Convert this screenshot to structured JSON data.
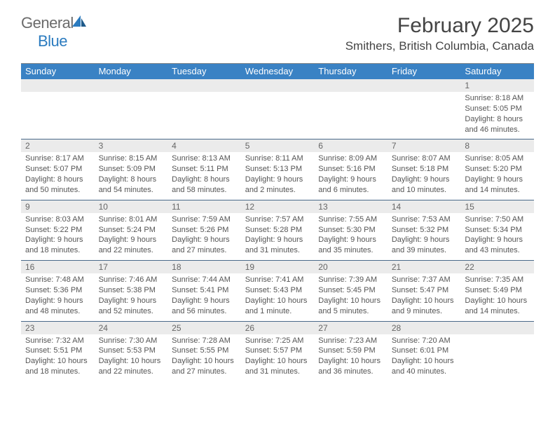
{
  "logo": {
    "general": "General",
    "blue": "Blue"
  },
  "title": "February 2025",
  "location": "Smithers, British Columbia, Canada",
  "colors": {
    "header_bg": "#3a82c4",
    "header_text": "#ffffff",
    "strip_bg": "#ebebeb",
    "border": "#4a6a8a",
    "logo_blue": "#2b7bbf",
    "logo_gray": "#6b6b6b",
    "text": "#444444"
  },
  "day_names": [
    "Sunday",
    "Monday",
    "Tuesday",
    "Wednesday",
    "Thursday",
    "Friday",
    "Saturday"
  ],
  "weeks": [
    [
      {
        "n": "",
        "l": []
      },
      {
        "n": "",
        "l": []
      },
      {
        "n": "",
        "l": []
      },
      {
        "n": "",
        "l": []
      },
      {
        "n": "",
        "l": []
      },
      {
        "n": "",
        "l": []
      },
      {
        "n": "1",
        "l": [
          "Sunrise: 8:18 AM",
          "Sunset: 5:05 PM",
          "Daylight: 8 hours",
          "and 46 minutes."
        ]
      }
    ],
    [
      {
        "n": "2",
        "l": [
          "Sunrise: 8:17 AM",
          "Sunset: 5:07 PM",
          "Daylight: 8 hours",
          "and 50 minutes."
        ]
      },
      {
        "n": "3",
        "l": [
          "Sunrise: 8:15 AM",
          "Sunset: 5:09 PM",
          "Daylight: 8 hours",
          "and 54 minutes."
        ]
      },
      {
        "n": "4",
        "l": [
          "Sunrise: 8:13 AM",
          "Sunset: 5:11 PM",
          "Daylight: 8 hours",
          "and 58 minutes."
        ]
      },
      {
        "n": "5",
        "l": [
          "Sunrise: 8:11 AM",
          "Sunset: 5:13 PM",
          "Daylight: 9 hours",
          "and 2 minutes."
        ]
      },
      {
        "n": "6",
        "l": [
          "Sunrise: 8:09 AM",
          "Sunset: 5:16 PM",
          "Daylight: 9 hours",
          "and 6 minutes."
        ]
      },
      {
        "n": "7",
        "l": [
          "Sunrise: 8:07 AM",
          "Sunset: 5:18 PM",
          "Daylight: 9 hours",
          "and 10 minutes."
        ]
      },
      {
        "n": "8",
        "l": [
          "Sunrise: 8:05 AM",
          "Sunset: 5:20 PM",
          "Daylight: 9 hours",
          "and 14 minutes."
        ]
      }
    ],
    [
      {
        "n": "9",
        "l": [
          "Sunrise: 8:03 AM",
          "Sunset: 5:22 PM",
          "Daylight: 9 hours",
          "and 18 minutes."
        ]
      },
      {
        "n": "10",
        "l": [
          "Sunrise: 8:01 AM",
          "Sunset: 5:24 PM",
          "Daylight: 9 hours",
          "and 22 minutes."
        ]
      },
      {
        "n": "11",
        "l": [
          "Sunrise: 7:59 AM",
          "Sunset: 5:26 PM",
          "Daylight: 9 hours",
          "and 27 minutes."
        ]
      },
      {
        "n": "12",
        "l": [
          "Sunrise: 7:57 AM",
          "Sunset: 5:28 PM",
          "Daylight: 9 hours",
          "and 31 minutes."
        ]
      },
      {
        "n": "13",
        "l": [
          "Sunrise: 7:55 AM",
          "Sunset: 5:30 PM",
          "Daylight: 9 hours",
          "and 35 minutes."
        ]
      },
      {
        "n": "14",
        "l": [
          "Sunrise: 7:53 AM",
          "Sunset: 5:32 PM",
          "Daylight: 9 hours",
          "and 39 minutes."
        ]
      },
      {
        "n": "15",
        "l": [
          "Sunrise: 7:50 AM",
          "Sunset: 5:34 PM",
          "Daylight: 9 hours",
          "and 43 minutes."
        ]
      }
    ],
    [
      {
        "n": "16",
        "l": [
          "Sunrise: 7:48 AM",
          "Sunset: 5:36 PM",
          "Daylight: 9 hours",
          "and 48 minutes."
        ]
      },
      {
        "n": "17",
        "l": [
          "Sunrise: 7:46 AM",
          "Sunset: 5:38 PM",
          "Daylight: 9 hours",
          "and 52 minutes."
        ]
      },
      {
        "n": "18",
        "l": [
          "Sunrise: 7:44 AM",
          "Sunset: 5:41 PM",
          "Daylight: 9 hours",
          "and 56 minutes."
        ]
      },
      {
        "n": "19",
        "l": [
          "Sunrise: 7:41 AM",
          "Sunset: 5:43 PM",
          "Daylight: 10 hours",
          "and 1 minute."
        ]
      },
      {
        "n": "20",
        "l": [
          "Sunrise: 7:39 AM",
          "Sunset: 5:45 PM",
          "Daylight: 10 hours",
          "and 5 minutes."
        ]
      },
      {
        "n": "21",
        "l": [
          "Sunrise: 7:37 AM",
          "Sunset: 5:47 PM",
          "Daylight: 10 hours",
          "and 9 minutes."
        ]
      },
      {
        "n": "22",
        "l": [
          "Sunrise: 7:35 AM",
          "Sunset: 5:49 PM",
          "Daylight: 10 hours",
          "and 14 minutes."
        ]
      }
    ],
    [
      {
        "n": "23",
        "l": [
          "Sunrise: 7:32 AM",
          "Sunset: 5:51 PM",
          "Daylight: 10 hours",
          "and 18 minutes."
        ]
      },
      {
        "n": "24",
        "l": [
          "Sunrise: 7:30 AM",
          "Sunset: 5:53 PM",
          "Daylight: 10 hours",
          "and 22 minutes."
        ]
      },
      {
        "n": "25",
        "l": [
          "Sunrise: 7:28 AM",
          "Sunset: 5:55 PM",
          "Daylight: 10 hours",
          "and 27 minutes."
        ]
      },
      {
        "n": "26",
        "l": [
          "Sunrise: 7:25 AM",
          "Sunset: 5:57 PM",
          "Daylight: 10 hours",
          "and 31 minutes."
        ]
      },
      {
        "n": "27",
        "l": [
          "Sunrise: 7:23 AM",
          "Sunset: 5:59 PM",
          "Daylight: 10 hours",
          "and 36 minutes."
        ]
      },
      {
        "n": "28",
        "l": [
          "Sunrise: 7:20 AM",
          "Sunset: 6:01 PM",
          "Daylight: 10 hours",
          "and 40 minutes."
        ]
      },
      {
        "n": "",
        "l": []
      }
    ]
  ]
}
